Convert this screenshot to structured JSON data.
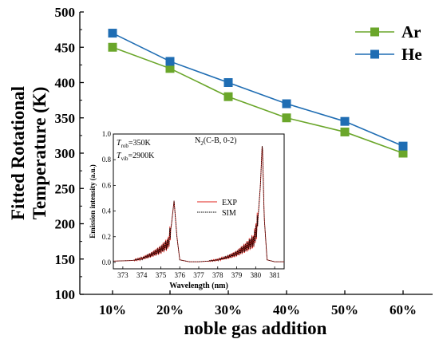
{
  "chart_data": [
    {
      "type": "line",
      "categories": [
        "10%",
        "20%",
        "30%",
        "40%",
        "50%",
        "60%"
      ],
      "xlabel": "noble gas addition",
      "ylabel_lines": [
        "Fitted Rotational",
        "Temperature (K)"
      ],
      "ylim": [
        100,
        500
      ],
      "yticks": [
        100,
        150,
        200,
        250,
        300,
        350,
        400,
        450,
        500
      ],
      "legend_position": "top-right",
      "series": [
        {
          "name": "Ar",
          "color": "#6aa62a",
          "values": [
            450,
            420,
            380,
            350,
            330,
            300
          ]
        },
        {
          "name": "He",
          "color": "#1f6db3",
          "values": [
            470,
            430,
            400,
            370,
            345,
            310
          ]
        }
      ]
    },
    {
      "type": "line",
      "xlabel": "Wavelength (nm)",
      "ylabel": "Emission intensity (a.u.)",
      "xlim": [
        372.5,
        381.5
      ],
      "xticks": [
        373,
        374,
        375,
        376,
        377,
        378,
        379,
        380,
        381
      ],
      "ylim": [
        -0.05,
        1.0
      ],
      "yticks": [
        0.0,
        0.2,
        0.4,
        0.6,
        0.8,
        1.0
      ],
      "annotations": {
        "trot_label": "T",
        "trot_sub": "rob",
        "trot_value": "=350K",
        "tvib_label": "T",
        "tvib_sub": "vib",
        "tvib_value": "=2900K",
        "band_label": "N",
        "band_sub": "2",
        "band_rest": "(C-B, 0-2)"
      },
      "series": [
        {
          "name": "EXP",
          "color": "#e0201a"
        },
        {
          "name": "SIM",
          "color": "#000000"
        }
      ],
      "spectrum_points": [
        [
          372.5,
          0.01
        ],
        [
          373.5,
          0.015
        ],
        [
          374.0,
          0.03
        ],
        [
          374.5,
          0.06
        ],
        [
          375.0,
          0.1
        ],
        [
          375.4,
          0.15
        ],
        [
          375.55,
          0.28
        ],
        [
          375.7,
          0.48
        ],
        [
          375.85,
          0.2
        ],
        [
          376.0,
          0.02
        ],
        [
          376.5,
          0.005
        ],
        [
          377.0,
          0.005
        ],
        [
          377.5,
          0.01
        ],
        [
          378.0,
          0.02
        ],
        [
          378.5,
          0.04
        ],
        [
          379.0,
          0.07
        ],
        [
          379.5,
          0.12
        ],
        [
          379.9,
          0.17
        ],
        [
          380.1,
          0.3
        ],
        [
          380.25,
          0.6
        ],
        [
          380.35,
          0.94
        ],
        [
          380.45,
          0.35
        ],
        [
          380.6,
          0.02
        ],
        [
          381.0,
          0.005
        ],
        [
          381.5,
          0.005
        ]
      ]
    }
  ]
}
